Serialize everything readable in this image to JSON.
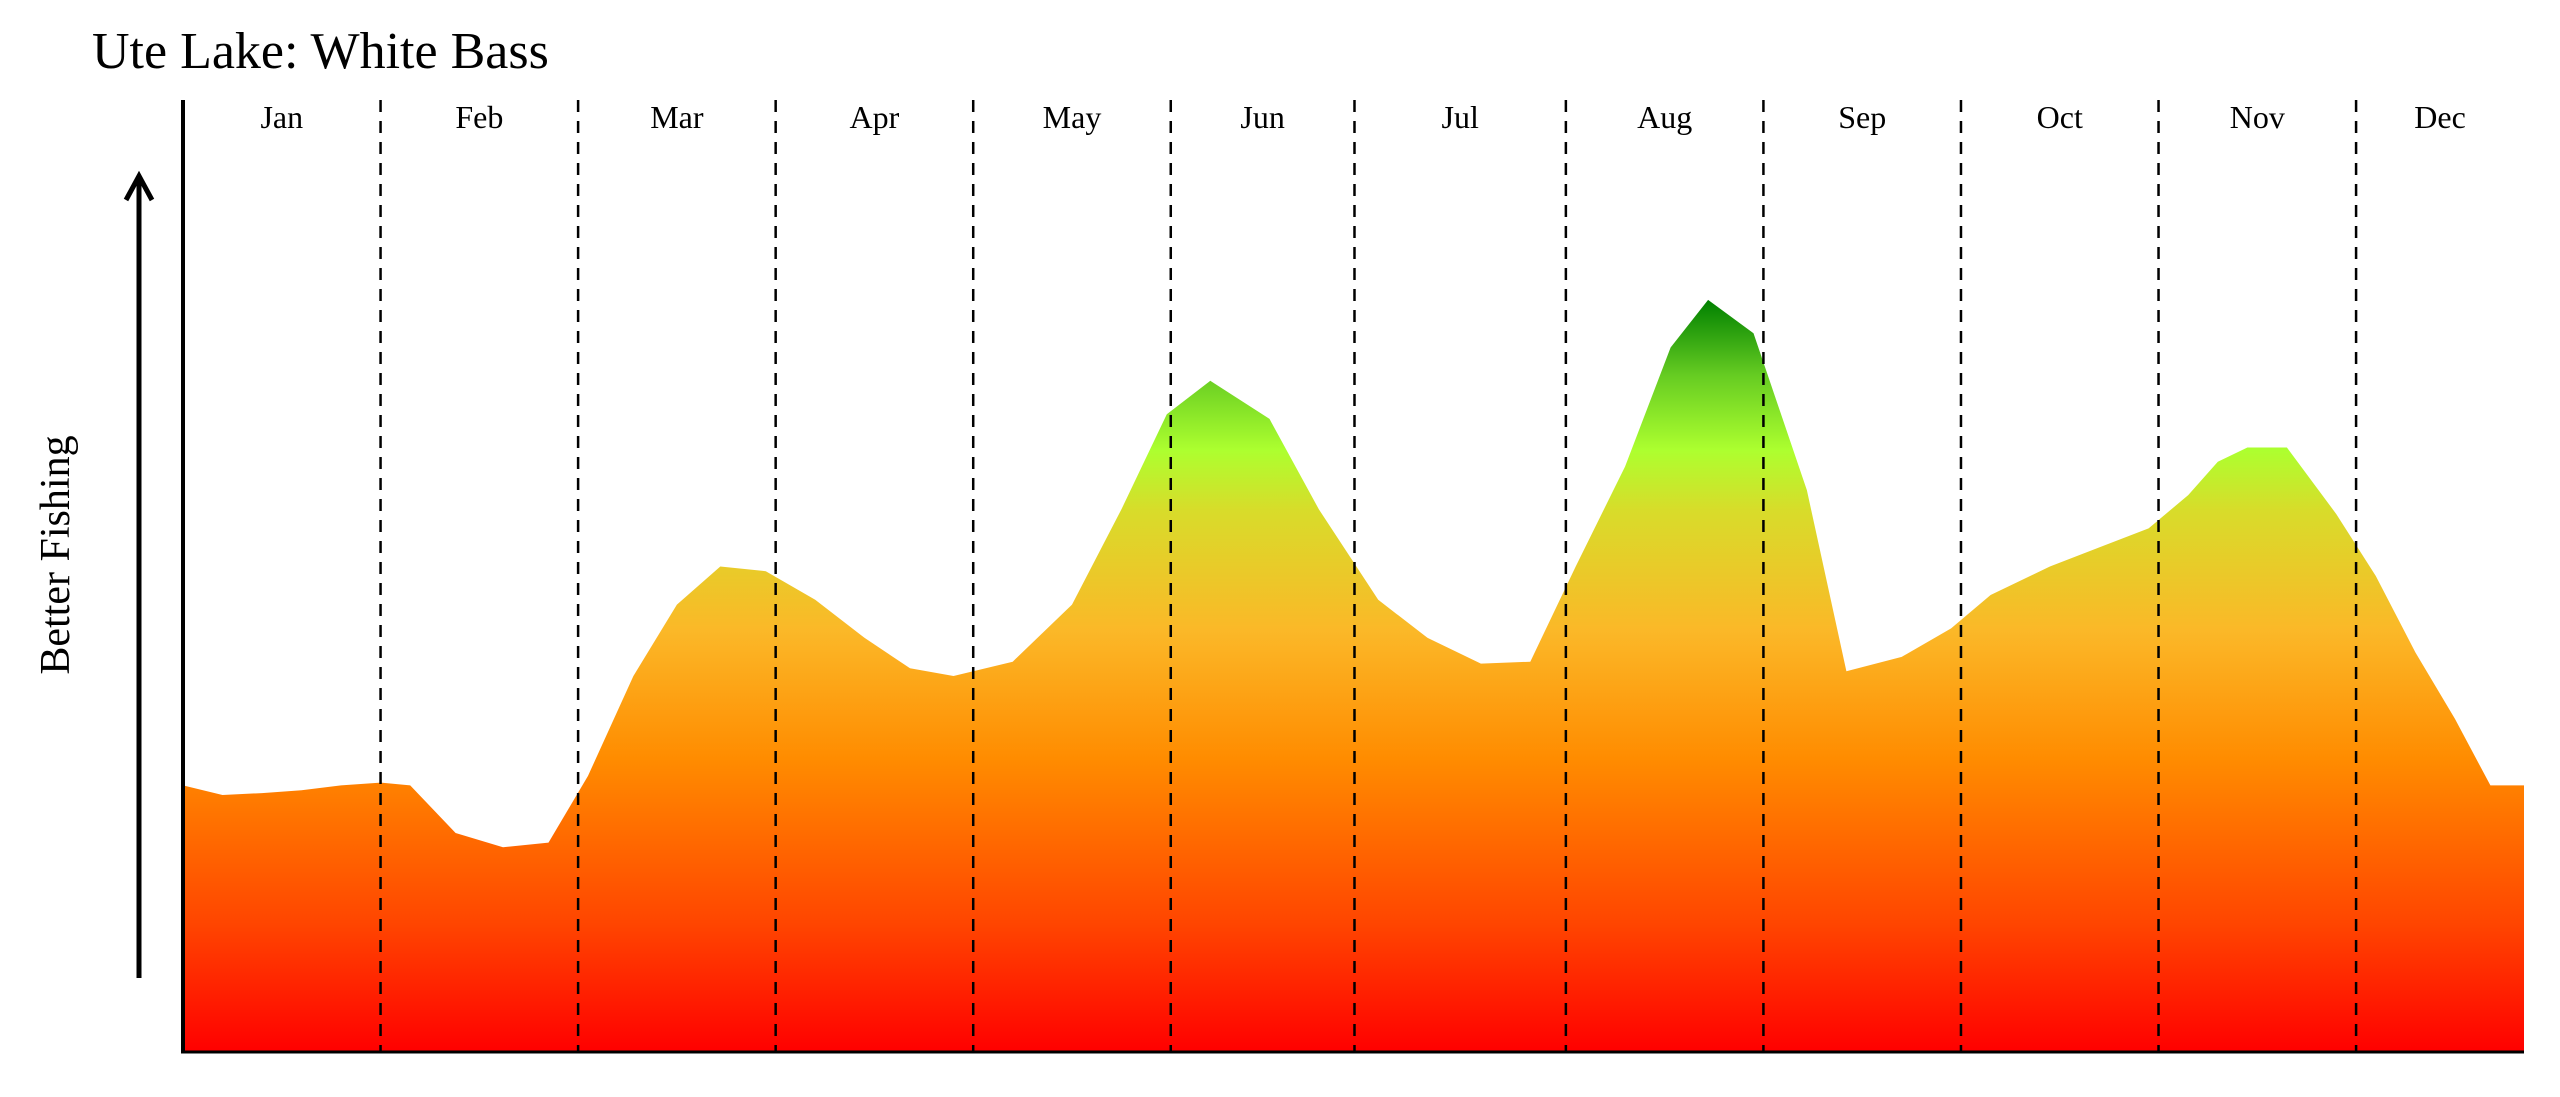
{
  "chart_data": {
    "type": "area",
    "title": "Ute Lake: White Bass",
    "ylabel": "Better Fishing",
    "xlabel": "",
    "categories": [
      "Jan",
      "Feb",
      "Mar",
      "Apr",
      "May",
      "Jun",
      "Jul",
      "Aug",
      "Sep",
      "Oct",
      "Nov",
      "Dec"
    ],
    "month_boundaries": [
      0,
      1,
      2,
      3,
      4,
      5,
      5.93,
      7,
      8,
      9,
      10,
      11,
      11.85
    ],
    "x_range": [
      0,
      11.85
    ],
    "y_range": [
      0,
      100
    ],
    "y_ticks_shown": false,
    "grid": "dashed vertical month dividers",
    "legend": "none",
    "gradient_colors": [
      "#ff0000",
      "#ff4500",
      "#ff8c00",
      "#fbb828",
      "#d8dc2a",
      "#adff2f",
      "#66cc22",
      "#008000"
    ],
    "series": [
      {
        "x": [
          0,
          0.2,
          0.4,
          0.6,
          0.8,
          1.0,
          1.15,
          1.38,
          1.62,
          1.85,
          2.05,
          2.28,
          2.5,
          2.72,
          2.95,
          3.2,
          3.45,
          3.68,
          3.9,
          4.2,
          4.5,
          4.75,
          4.98,
          5.2,
          5.5,
          5.75,
          6.05,
          6.3,
          6.57,
          6.82,
          7.05,
          7.3,
          7.53,
          7.72,
          7.95,
          8.22,
          8.42,
          8.7,
          8.95,
          9.15,
          9.45,
          9.7,
          9.95,
          10.15,
          10.3,
          10.45,
          10.65,
          10.9,
          11.1,
          11.3,
          11.5,
          11.68,
          11.85
        ],
        "y": [
          28,
          27,
          27.2,
          27.5,
          28,
          28.3,
          28,
          23,
          21.5,
          22,
          29,
          39.5,
          47,
          51,
          50.5,
          47.5,
          43.5,
          40.3,
          39.5,
          41,
          47,
          57,
          67,
          70.5,
          66.5,
          57,
          47.5,
          43.5,
          40.8,
          41,
          51,
          61.5,
          74,
          79,
          75.5,
          59,
          40,
          41.5,
          44.5,
          48,
          51,
          53,
          55,
          58.5,
          62,
          63.5,
          63.5,
          56.5,
          50,
          42,
          35,
          28,
          28
        ]
      }
    ]
  }
}
